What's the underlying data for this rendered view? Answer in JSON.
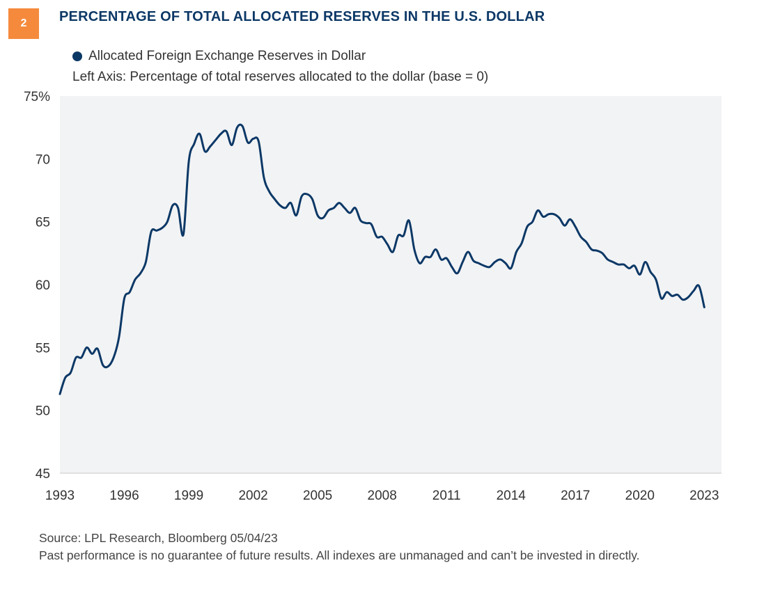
{
  "header": {
    "badge": "2",
    "title": "PERCENTAGE OF TOTAL ALLOCATED RESERVES IN THE U.S. DOLLAR"
  },
  "colors": {
    "line": "#0c3866",
    "plot_background": "#f2f3f5",
    "badge": "#f58a3d"
  },
  "chart_data": {
    "type": "line",
    "title": "PERCENTAGE OF TOTAL ALLOCATED RESERVES IN THE U.S. DOLLAR",
    "legend": "Allocated Foreign Exchange Reserves in Dollar",
    "axis_note": "Left Axis: Percentage of total reserves allocated to the dollar (base = 0)",
    "xlabel": "",
    "ylabel": "",
    "xlim": [
      1993,
      2023.8
    ],
    "ylim": [
      45,
      75
    ],
    "x_ticks": [
      1993,
      1996,
      1999,
      2002,
      2005,
      2008,
      2011,
      2014,
      2017,
      2020,
      2023
    ],
    "y_ticks": [
      {
        "value": 75,
        "label": "75%"
      },
      {
        "value": 70,
        "label": "70"
      },
      {
        "value": 65,
        "label": "65"
      },
      {
        "value": 60,
        "label": "60"
      },
      {
        "value": 55,
        "label": "55"
      },
      {
        "value": 50,
        "label": "50"
      },
      {
        "value": 45,
        "label": "45"
      }
    ],
    "grid": false,
    "legend_position": "top-left",
    "series": [
      {
        "name": "Allocated Foreign Exchange Reserves in Dollar",
        "points": [
          [
            1993.0,
            51.3
          ],
          [
            1993.25,
            52.6
          ],
          [
            1993.5,
            53.0
          ],
          [
            1993.75,
            54.2
          ],
          [
            1994.0,
            54.2
          ],
          [
            1994.25,
            55.0
          ],
          [
            1994.5,
            54.5
          ],
          [
            1994.75,
            54.9
          ],
          [
            1995.0,
            53.6
          ],
          [
            1995.25,
            53.5
          ],
          [
            1995.5,
            54.2
          ],
          [
            1995.75,
            55.8
          ],
          [
            1996.0,
            58.9
          ],
          [
            1996.25,
            59.4
          ],
          [
            1996.5,
            60.4
          ],
          [
            1996.75,
            60.9
          ],
          [
            1997.0,
            61.8
          ],
          [
            1997.25,
            64.2
          ],
          [
            1997.5,
            64.3
          ],
          [
            1997.75,
            64.5
          ],
          [
            1998.0,
            65.0
          ],
          [
            1998.25,
            66.3
          ],
          [
            1998.5,
            66.1
          ],
          [
            1998.75,
            64.0
          ],
          [
            1999.0,
            69.8
          ],
          [
            1999.25,
            71.2
          ],
          [
            1999.5,
            72.0
          ],
          [
            1999.75,
            70.6
          ],
          [
            2000.0,
            71.0
          ],
          [
            2000.25,
            71.5
          ],
          [
            2000.5,
            72.0
          ],
          [
            2000.75,
            72.2
          ],
          [
            2001.0,
            71.1
          ],
          [
            2001.25,
            72.5
          ],
          [
            2001.5,
            72.6
          ],
          [
            2001.75,
            71.3
          ],
          [
            2002.0,
            71.6
          ],
          [
            2002.25,
            71.4
          ],
          [
            2002.5,
            68.5
          ],
          [
            2002.75,
            67.4
          ],
          [
            2003.0,
            66.8
          ],
          [
            2003.25,
            66.3
          ],
          [
            2003.5,
            66.1
          ],
          [
            2003.75,
            66.5
          ],
          [
            2004.0,
            65.5
          ],
          [
            2004.25,
            67.0
          ],
          [
            2004.5,
            67.2
          ],
          [
            2004.75,
            66.8
          ],
          [
            2005.0,
            65.5
          ],
          [
            2005.25,
            65.3
          ],
          [
            2005.5,
            65.9
          ],
          [
            2005.75,
            66.1
          ],
          [
            2006.0,
            66.5
          ],
          [
            2006.25,
            66.1
          ],
          [
            2006.5,
            65.7
          ],
          [
            2006.75,
            66.1
          ],
          [
            2007.0,
            65.1
          ],
          [
            2007.25,
            64.9
          ],
          [
            2007.5,
            64.8
          ],
          [
            2007.75,
            63.8
          ],
          [
            2008.0,
            63.8
          ],
          [
            2008.25,
            63.2
          ],
          [
            2008.5,
            62.6
          ],
          [
            2008.75,
            63.9
          ],
          [
            2009.0,
            63.9
          ],
          [
            2009.25,
            65.1
          ],
          [
            2009.5,
            62.8
          ],
          [
            2009.75,
            61.7
          ],
          [
            2010.0,
            62.2
          ],
          [
            2010.25,
            62.2
          ],
          [
            2010.5,
            62.8
          ],
          [
            2010.75,
            62.0
          ],
          [
            2011.0,
            62.1
          ],
          [
            2011.25,
            61.4
          ],
          [
            2011.5,
            60.9
          ],
          [
            2011.75,
            61.8
          ],
          [
            2012.0,
            62.6
          ],
          [
            2012.25,
            61.9
          ],
          [
            2012.5,
            61.7
          ],
          [
            2012.75,
            61.5
          ],
          [
            2013.0,
            61.4
          ],
          [
            2013.25,
            61.8
          ],
          [
            2013.5,
            62.0
          ],
          [
            2013.75,
            61.7
          ],
          [
            2014.0,
            61.3
          ],
          [
            2014.25,
            62.6
          ],
          [
            2014.5,
            63.3
          ],
          [
            2014.75,
            64.6
          ],
          [
            2015.0,
            65.0
          ],
          [
            2015.25,
            65.9
          ],
          [
            2015.5,
            65.4
          ],
          [
            2015.75,
            65.6
          ],
          [
            2016.0,
            65.6
          ],
          [
            2016.25,
            65.3
          ],
          [
            2016.5,
            64.7
          ],
          [
            2016.75,
            65.2
          ],
          [
            2017.0,
            64.6
          ],
          [
            2017.25,
            63.8
          ],
          [
            2017.5,
            63.4
          ],
          [
            2017.75,
            62.8
          ],
          [
            2018.0,
            62.7
          ],
          [
            2018.25,
            62.5
          ],
          [
            2018.5,
            62.0
          ],
          [
            2018.75,
            61.8
          ],
          [
            2019.0,
            61.6
          ],
          [
            2019.25,
            61.6
          ],
          [
            2019.5,
            61.3
          ],
          [
            2019.75,
            61.5
          ],
          [
            2020.0,
            60.8
          ],
          [
            2020.25,
            61.8
          ],
          [
            2020.5,
            61.0
          ],
          [
            2020.75,
            60.4
          ],
          [
            2021.0,
            58.9
          ],
          [
            2021.25,
            59.4
          ],
          [
            2021.5,
            59.1
          ],
          [
            2021.75,
            59.2
          ],
          [
            2022.0,
            58.8
          ],
          [
            2022.25,
            59.0
          ],
          [
            2022.5,
            59.5
          ],
          [
            2022.75,
            59.9
          ],
          [
            2023.0,
            58.2
          ]
        ]
      }
    ]
  },
  "footer": {
    "source": "Source: LPL Research, Bloomberg  05/04/23",
    "disclaimer": "Past performance is no guarantee of future results. All indexes are unmanaged and can’t be invested in directly."
  }
}
